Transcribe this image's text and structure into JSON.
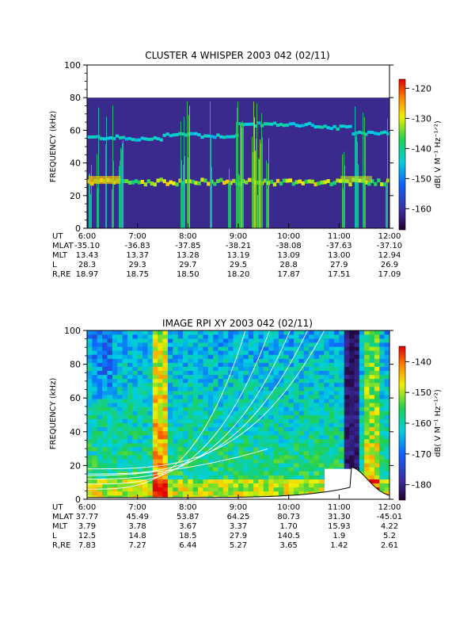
{
  "chart_data": [
    {
      "type": "heatmap",
      "title": "CLUSTER 4 WHISPER 2003 042 (02/11)",
      "ylabel": "FREQUENCY (kHz)",
      "ylim": [
        0,
        100
      ],
      "yticks": [
        "0",
        "20",
        "40",
        "60",
        "80",
        "100"
      ],
      "data_ymax": 80,
      "colorbar": {
        "label": "dB( V M⁻¹ Hz⁻¹ᐟ²)",
        "range": [
          -167,
          -117
        ],
        "ticks": [
          "-120",
          "-130",
          "-140",
          "-150",
          "-160"
        ]
      },
      "features": {
        "band_low_khz": 28,
        "band_high_khz": [
          55,
          54,
          57,
          56,
          63,
          63,
          61,
          58
        ]
      },
      "orbit_table": {
        "row_labels": [
          "UT",
          "MLAT",
          "MLT",
          "L",
          "R,RE"
        ],
        "columns": [
          [
            "6:00",
            "-35.10",
            "13.43",
            "28.3",
            "18.97"
          ],
          [
            "7:00",
            "-36.83",
            "13.37",
            "29.3",
            "18.75"
          ],
          [
            "8:00",
            "-37.85",
            "13.28",
            "29.7",
            "18.50"
          ],
          [
            "9:00",
            "-38.21",
            "13.19",
            "29.5",
            "18.20"
          ],
          [
            "10:00",
            "-38.08",
            "13.09",
            "28.8",
            "17.87"
          ],
          [
            "11:00",
            "-37.63",
            "13.00",
            "27.9",
            "17.51"
          ],
          [
            "12:00",
            "-37.10",
            "12.94",
            "26.9",
            "17.09"
          ]
        ]
      }
    },
    {
      "type": "heatmap",
      "title": "IMAGE RPI XY 2003 042 (02/11)",
      "ylabel": "FREQUENCY (kHz)",
      "ylim": [
        0,
        100
      ],
      "yticks": [
        "0",
        "20",
        "40",
        "60",
        "80",
        "100"
      ],
      "colorbar": {
        "label": "dB( V M⁻¹ Hz⁻¹ᐟ²)",
        "range": [
          -185,
          -135
        ],
        "ticks": [
          "-140",
          "-150",
          "-160",
          "-170",
          "-180"
        ]
      },
      "orbit_table": {
        "row_labels": [
          "UT",
          "MLAT",
          "MLT",
          "L",
          "R,RE"
        ],
        "columns": [
          [
            "6:00",
            "37.77",
            "3.79",
            "12.5",
            "7.83"
          ],
          [
            "7:00",
            "45.49",
            "3.78",
            "14.8",
            "7.27"
          ],
          [
            "8:00",
            "53.87",
            "3.67",
            "18.5",
            "6.44"
          ],
          [
            "9:00",
            "64.25",
            "3.37",
            "27.9",
            "5.27"
          ],
          [
            "10:00",
            "80.73",
            "1.70",
            "140.5",
            "3.65"
          ],
          [
            "11:00",
            "31.30",
            "15.93",
            "1.9",
            "1.42"
          ],
          [
            "12:00",
            "-45.01",
            "4.22",
            "5.2",
            "2.61"
          ]
        ]
      }
    }
  ],
  "colors": {
    "background": "#ffffff",
    "panel_fill": "#3a2a8e"
  }
}
